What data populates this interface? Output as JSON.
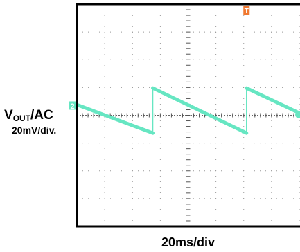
{
  "labels": {
    "channel_main": "V",
    "channel_sub": "OUT",
    "channel_suffix": "/AC",
    "vertical_scale": "20mV/div.",
    "horizontal_scale": "20ms/div",
    "channel_marker": "2",
    "trigger_marker": "T"
  },
  "colors": {
    "trace": "#66e6c2",
    "channel_marker": "#66e6c2",
    "trigger_marker": "#f07830",
    "grid": "#999999",
    "frame": "#000000"
  },
  "chart_data": {
    "type": "line",
    "title": "",
    "xlabel": "20ms/div",
    "ylabel": "VOUT/AC 20mV/div.",
    "x_units": "div",
    "y_units": "div",
    "xlim": [
      0,
      8.13
    ],
    "ylim": [
      -4,
      4
    ],
    "grid": true,
    "series": [
      {
        "values_note_free": true,
        "x": [
          0,
          2.73,
          2.73,
          6.1,
          6.1,
          8.13
        ],
        "y": [
          0.38,
          -0.64,
          0.98,
          -0.64,
          0.98,
          0.02
        ]
      }
    ]
  }
}
